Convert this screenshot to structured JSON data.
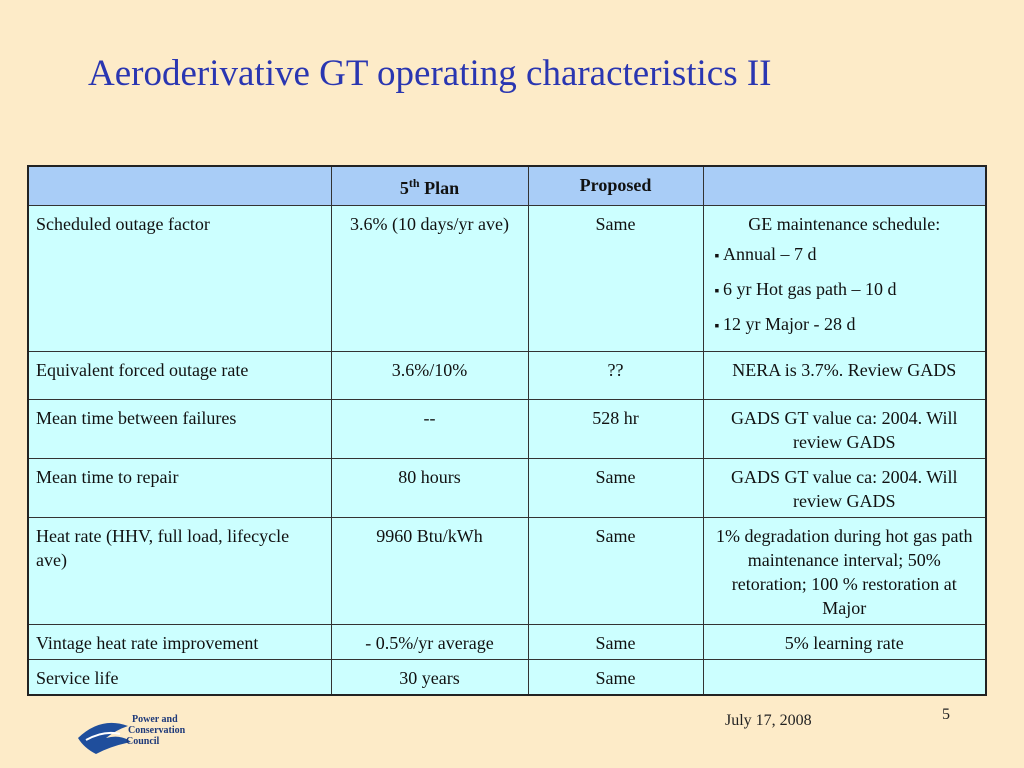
{
  "title": "Aeroderivative GT operating characteristics II",
  "table": {
    "header": {
      "plan": {
        "number": "5",
        "sup": "th",
        "word": "Plan"
      },
      "proposed": "Proposed"
    },
    "rows": [
      [
        "Scheduled outage factor",
        "3.6% (10 days/yr ave)",
        "Same",
        {
          "text": "GE maintenance schedule:",
          "bullets": [
            "Annual – 7 d",
            "6 yr Hot gas path – 10 d",
            "12 yr Major - 28 d"
          ]
        }
      ],
      [
        "Equivalent forced outage rate",
        "3.6%/10%",
        "??",
        "NERA is 3.7%.  Review GADS"
      ],
      [
        "Mean time between failures",
        "--",
        "528 hr",
        "GADS GT value ca: 2004. Will review GADS"
      ],
      [
        "Mean time to repair",
        "80 hours",
        "Same",
        "GADS GT value ca: 2004. Will review GADS"
      ],
      [
        "Heat rate (HHV, full load, lifecycle ave)",
        "9960 Btu/kWh",
        "Same",
        "1% degradation during hot gas path maintenance interval; 50% retoration; 100 % restoration at Major"
      ],
      [
        "Vintage heat rate improvement",
        "- 0.5%/yr average",
        "Same",
        "5% learning rate"
      ],
      [
        "Service life",
        "30 years",
        "Same"
      ]
    ]
  },
  "footer": {
    "logo_lines": [
      "Power and",
      "Conservation",
      "Council"
    ],
    "date": "July 17, 2008",
    "page": "5"
  }
}
